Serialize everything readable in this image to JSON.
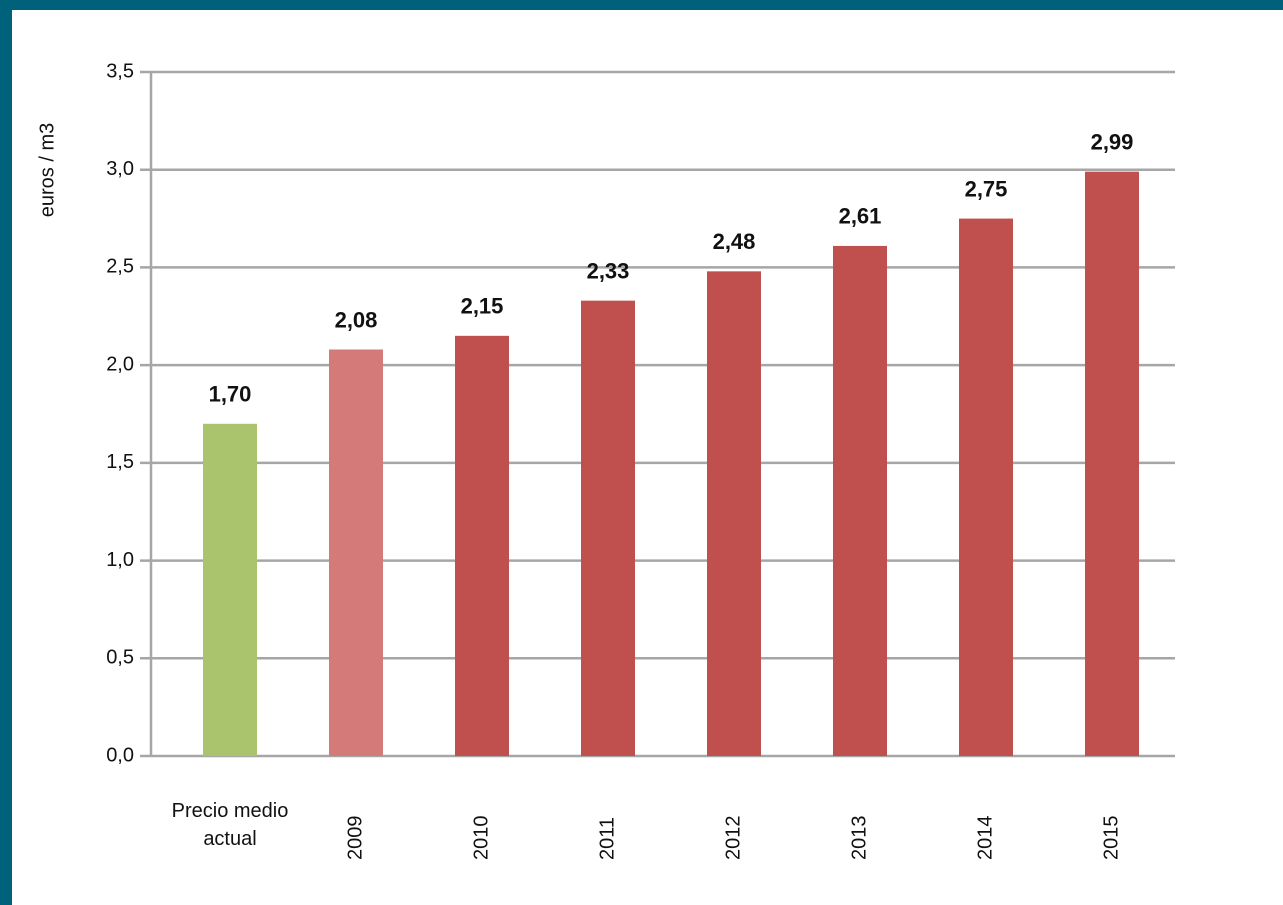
{
  "chart_data": {
    "type": "bar",
    "y_label": "euros / m3",
    "categories": [
      "Precio medio actual",
      "2009",
      "2010",
      "2011",
      "2012",
      "2013",
      "2014",
      "2015"
    ],
    "values": [
      1.7,
      2.08,
      2.15,
      2.33,
      2.48,
      2.61,
      2.75,
      2.99
    ],
    "value_labels": [
      "1,70",
      "2,08",
      "2,15",
      "2,33",
      "2,48",
      "2,61",
      "2,75",
      "2,99"
    ],
    "colors": [
      "#a9c46c",
      "#d47a78",
      "#c0504d",
      "#c0504d",
      "#c0504d",
      "#c0504d",
      "#c0504d",
      "#c0504d"
    ],
    "ylim": [
      0,
      3.5
    ],
    "yticks": [
      {
        "value": 0,
        "label": "0,0"
      },
      {
        "value": 0.5,
        "label": "0,5"
      },
      {
        "value": 1,
        "label": "1,0"
      },
      {
        "value": 1.5,
        "label": "1,5"
      },
      {
        "value": 2,
        "label": "2,0"
      },
      {
        "value": 2.5,
        "label": "2,5"
      },
      {
        "value": 3,
        "label": "3,0"
      },
      {
        "value": 3.5,
        "label": "3,5"
      }
    ],
    "grid": true
  }
}
